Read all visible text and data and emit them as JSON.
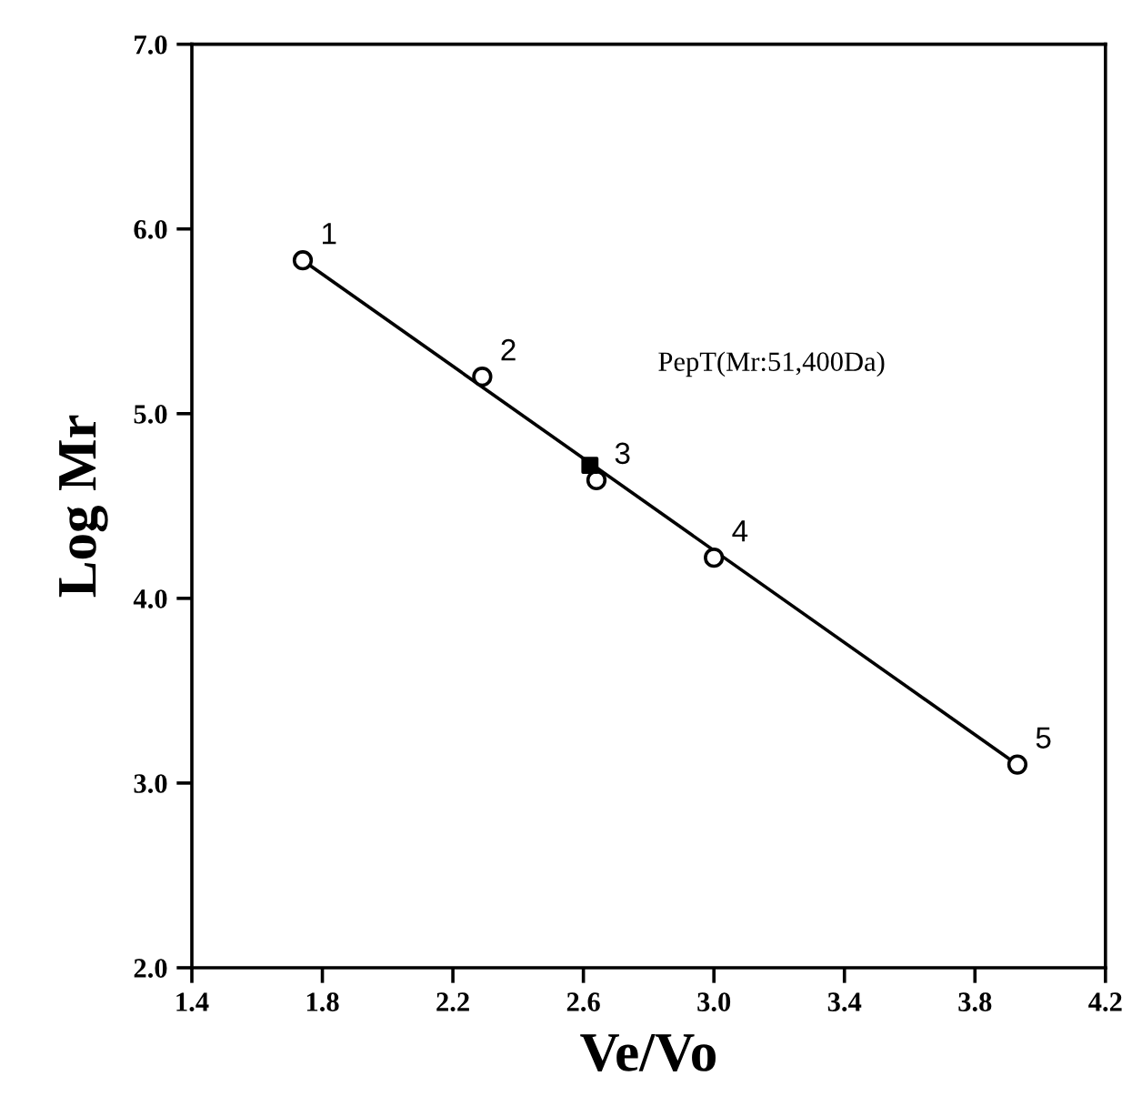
{
  "chart_data": {
    "type": "scatter",
    "xlabel": "Ve/Vo",
    "ylabel": "Log Mr",
    "xlim": [
      1.4,
      4.2
    ],
    "xticks": [
      {
        "value": 1.4,
        "label": "1.4"
      },
      {
        "value": 1.8,
        "label": "1.8"
      },
      {
        "value": 2.2,
        "label": "2.2"
      },
      {
        "value": 2.6,
        "label": "2.6"
      },
      {
        "value": 3.0,
        "label": "3.0"
      },
      {
        "value": 3.4,
        "label": "3.4"
      },
      {
        "value": 3.8,
        "label": "3.8"
      },
      {
        "value": 4.2,
        "label": "4.2"
      }
    ],
    "ylim": [
      2.0,
      7.0
    ],
    "yticks": [
      {
        "value": 2.0,
        "label": "2.0"
      },
      {
        "value": 3.0,
        "label": "3.0"
      },
      {
        "value": 4.0,
        "label": "4.0"
      },
      {
        "value": 5.0,
        "label": "5.0"
      },
      {
        "value": 6.0,
        "label": "6.0"
      },
      {
        "value": 7.0,
        "label": "7.0"
      }
    ],
    "grid": false,
    "legend": false,
    "series": [
      {
        "type": "line",
        "color": "#000000",
        "marker": "none",
        "line_style": "solid",
        "x": [
          1.74,
          3.93
        ],
        "values": [
          5.83,
          3.1
        ]
      },
      {
        "color": "#000000",
        "marker": "circle",
        "x": [
          1.74,
          2.29,
          2.64,
          3.0,
          3.93
        ],
        "values": [
          5.83,
          5.2,
          4.64,
          4.22,
          3.1
        ]
      },
      {
        "color": "#000000",
        "marker": "square",
        "x": [
          2.62
        ],
        "values": [
          4.72
        ]
      }
    ],
    "annotations": [
      {
        "text": "1",
        "x": 1.74,
        "y": 5.83
      },
      {
        "text": "2",
        "x": 2.29,
        "y": 5.2
      },
      {
        "text": "3",
        "x": 2.64,
        "y": 4.64
      },
      {
        "text": "4",
        "x": 3.0,
        "y": 4.22
      },
      {
        "text": "5",
        "x": 3.93,
        "y": 3.1
      },
      "PepT(Mr:51,400Da)"
    ]
  }
}
